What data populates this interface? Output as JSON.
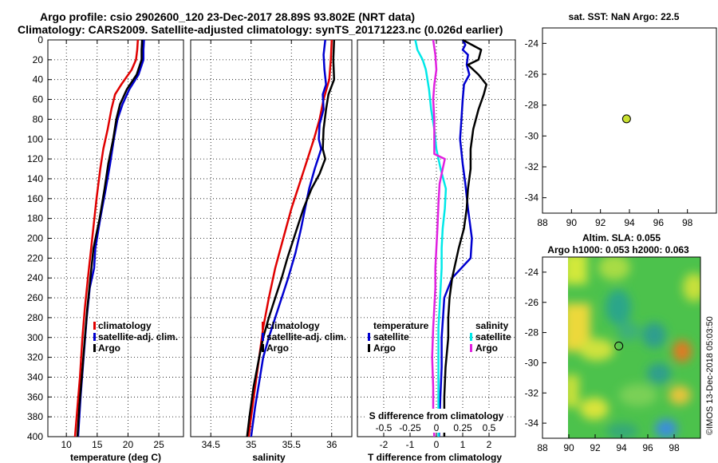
{
  "title_line1": "Argo profile: csio 2902600_120 23-Dec-2017 28.89S 93.802E (NRT data)",
  "title_line2": "Climatology: CARS2009. Satellite-adjusted climatology: synTS_20171223.nc (0.026d earlier)",
  "copyright": "©IMOS 13-Dec-2018 05:03:50",
  "colors": {
    "climatology": "#e00000",
    "satellite": "#0000d0",
    "argo": "#000000",
    "sat_salinity": "#00e8e8",
    "argo_salinity": "#e020e0",
    "marker": "#c8e030"
  },
  "chart_data": [
    {
      "id": "temperature",
      "type": "line",
      "xlabel": "temperature (deg C)",
      "ylabel": "pressure",
      "xlim": [
        7,
        29
      ],
      "ylim": [
        400,
        0
      ],
      "xticks": [
        "10",
        "15",
        "20",
        "25"
      ],
      "yticks": [
        "0",
        "20",
        "40",
        "60",
        "80",
        "100",
        "120",
        "140",
        "160",
        "180",
        "200",
        "220",
        "240",
        "260",
        "280",
        "300",
        "320",
        "340",
        "360",
        "380",
        "400"
      ],
      "legend": [
        "climatology",
        "satellite-adj. clim.",
        "Argo"
      ],
      "series": [
        {
          "name": "climatology",
          "color_key": "climatology",
          "points": [
            [
              21.6,
              0
            ],
            [
              21.5,
              10
            ],
            [
              21.3,
              20
            ],
            [
              20.6,
              30
            ],
            [
              18.9,
              45
            ],
            [
              17.9,
              55
            ],
            [
              17.3,
              70
            ],
            [
              16.7,
              90
            ],
            [
              16.0,
              110
            ],
            [
              15.5,
              130
            ],
            [
              14.9,
              160
            ],
            [
              14.2,
              200
            ],
            [
              13.5,
              240
            ],
            [
              13.0,
              270
            ],
            [
              12.6,
              300
            ],
            [
              12.2,
              340
            ],
            [
              11.8,
              370
            ],
            [
              11.4,
              400
            ]
          ]
        },
        {
          "name": "satellite-adj. clim.",
          "color_key": "satellite",
          "points": [
            [
              22.6,
              0
            ],
            [
              22.5,
              10
            ],
            [
              22.5,
              20
            ],
            [
              21.7,
              35
            ],
            [
              20.2,
              50
            ],
            [
              19.1,
              65
            ],
            [
              18.3,
              80
            ],
            [
              17.7,
              100
            ],
            [
              17.1,
              125
            ],
            [
              16.4,
              150
            ],
            [
              15.5,
              180
            ],
            [
              14.7,
              210
            ],
            [
              14.5,
              230
            ],
            [
              13.8,
              250
            ],
            [
              13.3,
              280
            ],
            [
              12.8,
              320
            ],
            [
              12.3,
              360
            ],
            [
              11.9,
              400
            ]
          ]
        },
        {
          "name": "Argo",
          "color_key": "argo",
          "points": [
            [
              22.3,
              0
            ],
            [
              22.2,
              10
            ],
            [
              22.2,
              20
            ],
            [
              21.4,
              35
            ],
            [
              19.8,
              50
            ],
            [
              18.7,
              65
            ],
            [
              18.1,
              80
            ],
            [
              17.6,
              100
            ],
            [
              16.8,
              125
            ],
            [
              16.2,
              150
            ],
            [
              15.4,
              180
            ],
            [
              14.4,
              210
            ],
            [
              13.9,
              240
            ],
            [
              13.4,
              270
            ],
            [
              13.0,
              300
            ],
            [
              12.5,
              340
            ],
            [
              12.1,
              370
            ],
            [
              11.8,
              400
            ]
          ]
        }
      ]
    },
    {
      "id": "salinity",
      "type": "line",
      "xlabel": "salinity",
      "xlim": [
        34.25,
        36.25
      ],
      "ylim": [
        400,
        0
      ],
      "xticks": [
        "34.5",
        "35",
        "35.5",
        "36"
      ],
      "legend": [
        "climatology",
        "satellite-adj. clim.",
        "Argo"
      ],
      "series": [
        {
          "name": "climatology",
          "color_key": "climatology",
          "points": [
            [
              36.0,
              0
            ],
            [
              35.99,
              20
            ],
            [
              35.97,
              40
            ],
            [
              35.9,
              60
            ],
            [
              35.85,
              80
            ],
            [
              35.78,
              100
            ],
            [
              35.7,
              120
            ],
            [
              35.6,
              145
            ],
            [
              35.5,
              170
            ],
            [
              35.4,
              200
            ],
            [
              35.3,
              230
            ],
            [
              35.22,
              260
            ],
            [
              35.15,
              290
            ],
            [
              35.1,
              320
            ],
            [
              35.05,
              350
            ],
            [
              35.0,
              380
            ],
            [
              34.97,
              400
            ]
          ]
        },
        {
          "name": "satellite-adj. clim.",
          "color_key": "satellite",
          "points": [
            [
              35.92,
              0
            ],
            [
              35.9,
              15
            ],
            [
              35.91,
              30
            ],
            [
              35.93,
              45
            ],
            [
              35.89,
              55
            ],
            [
              35.9,
              70
            ],
            [
              35.85,
              85
            ],
            [
              35.84,
              100
            ],
            [
              35.87,
              110
            ],
            [
              35.79,
              130
            ],
            [
              35.72,
              150
            ],
            [
              35.67,
              170
            ],
            [
              35.62,
              190
            ],
            [
              35.55,
              215
            ],
            [
              35.46,
              240
            ],
            [
              35.38,
              260
            ],
            [
              35.3,
              280
            ],
            [
              35.22,
              300
            ],
            [
              35.15,
              320
            ],
            [
              35.1,
              345
            ],
            [
              35.05,
              370
            ],
            [
              35.0,
              400
            ]
          ]
        },
        {
          "name": "Argo",
          "color_key": "argo",
          "points": [
            [
              36.03,
              0
            ],
            [
              36.02,
              20
            ],
            [
              36.03,
              40
            ],
            [
              35.96,
              55
            ],
            [
              35.93,
              70
            ],
            [
              35.9,
              90
            ],
            [
              35.89,
              110
            ],
            [
              35.92,
              120
            ],
            [
              35.85,
              135
            ],
            [
              35.75,
              150
            ],
            [
              35.65,
              170
            ],
            [
              35.55,
              195
            ],
            [
              35.45,
              220
            ],
            [
              35.38,
              240
            ],
            [
              35.3,
              260
            ],
            [
              35.22,
              280
            ],
            [
              35.15,
              300
            ],
            [
              35.1,
              320
            ],
            [
              35.03,
              350
            ],
            [
              34.98,
              380
            ],
            [
              34.95,
              400
            ]
          ]
        }
      ]
    },
    {
      "id": "difference",
      "type": "line",
      "xlabel": "T difference from climatology",
      "x2label": "S difference from climatology",
      "xlim": [
        -3,
        3
      ],
      "ylim": [
        400,
        0
      ],
      "xticks": [
        "-2",
        "-1",
        "0",
        "1",
        "2"
      ],
      "x2ticks": [
        "-0.5",
        "-0.25",
        "0",
        "0.25",
        "0.5"
      ],
      "legend_temperature": {
        "title": "temperature",
        "items": [
          "satellite",
          "Argo"
        ]
      },
      "legend_salinity": {
        "title": "salinity",
        "items": [
          "satellite",
          "Argo"
        ]
      },
      "series": [
        {
          "name": "temperature satellite",
          "color_key": "satellite",
          "points": [
            [
              1.0,
              0
            ],
            [
              1.1,
              5
            ],
            [
              1.0,
              10
            ],
            [
              1.2,
              15
            ],
            [
              1.15,
              25
            ],
            [
              1.25,
              35
            ],
            [
              1.05,
              45
            ],
            [
              1.0,
              60
            ],
            [
              0.95,
              80
            ],
            [
              0.9,
              100
            ],
            [
              1.0,
              125
            ],
            [
              1.1,
              145
            ],
            [
              1.2,
              170
            ],
            [
              1.35,
              200
            ],
            [
              1.3,
              220
            ],
            [
              0.6,
              240
            ],
            [
              0.3,
              260
            ],
            [
              0.25,
              280
            ],
            [
              0.2,
              300
            ],
            [
              0.2,
              330
            ],
            [
              0.15,
              360
            ],
            [
              0.1,
              400
            ]
          ]
        },
        {
          "name": "temperature Argo",
          "color_key": "argo",
          "points": [
            [
              1.0,
              0
            ],
            [
              1.7,
              10
            ],
            [
              1.6,
              20
            ],
            [
              1.2,
              25
            ],
            [
              1.6,
              35
            ],
            [
              1.9,
              45
            ],
            [
              1.8,
              55
            ],
            [
              1.6,
              70
            ],
            [
              1.4,
              90
            ],
            [
              1.3,
              110
            ],
            [
              1.3,
              130
            ],
            [
              1.2,
              150
            ],
            [
              1.15,
              170
            ],
            [
              1.05,
              190
            ],
            [
              0.85,
              210
            ],
            [
              0.6,
              240
            ],
            [
              0.5,
              260
            ],
            [
              0.45,
              280
            ],
            [
              0.45,
              300
            ],
            [
              0.35,
              330
            ],
            [
              0.3,
              360
            ],
            [
              0.3,
              400
            ]
          ]
        },
        {
          "name": "salinity satellite",
          "color_key": "sat_salinity",
          "points": [
            [
              -0.2,
              0
            ],
            [
              -0.18,
              10
            ],
            [
              -0.13,
              20
            ],
            [
              -0.1,
              30
            ],
            [
              -0.07,
              50
            ],
            [
              -0.05,
              70
            ],
            [
              -0.02,
              90
            ],
            [
              0.0,
              110
            ],
            [
              0.04,
              130
            ],
            [
              0.09,
              150
            ],
            [
              0.08,
              170
            ],
            [
              0.06,
              190
            ],
            [
              0.05,
              210
            ],
            [
              0.05,
              230
            ],
            [
              0.04,
              250
            ],
            [
              0.03,
              270
            ],
            [
              0.02,
              290
            ],
            [
              0.02,
              320
            ],
            [
              0.02,
              350
            ],
            [
              0.02,
              380
            ],
            [
              0.02,
              400
            ]
          ]
        },
        {
          "name": "salinity Argo",
          "color_key": "argo_salinity",
          "points": [
            [
              -0.03,
              0
            ],
            [
              -0.01,
              15
            ],
            [
              0.0,
              30
            ],
            [
              -0.02,
              45
            ],
            [
              -0.03,
              60
            ],
            [
              -0.02,
              80
            ],
            [
              -0.02,
              100
            ],
            [
              -0.02,
              115
            ],
            [
              0.08,
              120
            ],
            [
              0.06,
              130
            ],
            [
              0.03,
              145
            ],
            [
              0.02,
              165
            ],
            [
              0.01,
              190
            ],
            [
              0.0,
              210
            ],
            [
              -0.01,
              230
            ],
            [
              -0.01,
              250
            ],
            [
              -0.02,
              270
            ],
            [
              -0.03,
              290
            ],
            [
              -0.04,
              320
            ],
            [
              -0.03,
              350
            ],
            [
              -0.03,
              380
            ],
            [
              -0.02,
              400
            ]
          ]
        }
      ]
    },
    {
      "id": "sst_map",
      "type": "scatter",
      "title": "sat. SST: NaN Argo: 22.5",
      "xlim": [
        88,
        100
      ],
      "ylim": [
        -35,
        -23
      ],
      "xticks": [
        "88",
        "90",
        "92",
        "94",
        "96",
        "98"
      ],
      "yticks": [
        "-24",
        "-26",
        "-28",
        "-30",
        "-32",
        "-34"
      ],
      "points": [
        [
          93.8,
          -28.89
        ]
      ]
    },
    {
      "id": "sla_map",
      "type": "heatmap",
      "title_line1": "Altim. SLA: 0.055",
      "title_line2": "Argo h1000: 0.053 h2000: 0.063",
      "xlim": [
        88,
        100
      ],
      "ylim": [
        -35,
        -23
      ],
      "xticks": [
        "88",
        "90",
        "92",
        "94",
        "96",
        "98"
      ],
      "yticks": [
        "-24",
        "-26",
        "-28",
        "-30",
        "-32",
        "-34"
      ],
      "points": [
        [
          93.8,
          -28.89
        ]
      ]
    }
  ]
}
